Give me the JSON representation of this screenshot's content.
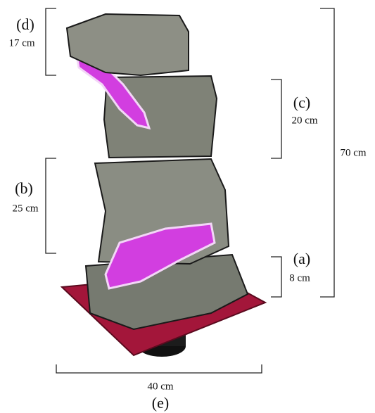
{
  "dimensions": [
    {
      "label": "(d)",
      "measure": "17 cm"
    },
    {
      "label": "(c)",
      "measure": "20 cm"
    },
    {
      "label": "(b)",
      "measure": "25 cm"
    },
    {
      "label": "(a)",
      "measure": "8 cm"
    }
  ],
  "total": "70 cm",
  "base": {
    "measure": "40 cm",
    "label": "(e)"
  }
}
